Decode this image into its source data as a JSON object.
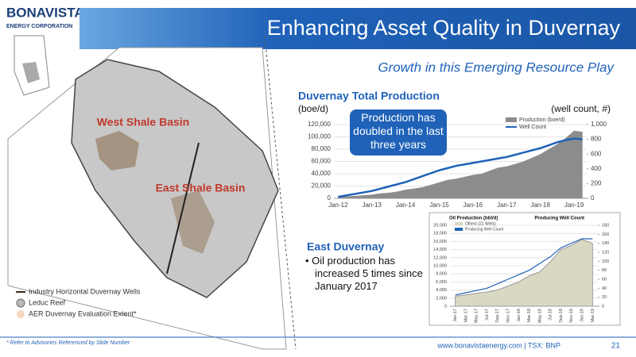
{
  "header": {
    "logo": "BONAVISTA",
    "logo_sub": "ENERGY CORPORATION",
    "title": "Enhancing Asset Quality in Duvernay"
  },
  "subtitle": "Growth in this Emerging Resource Play",
  "map": {
    "labels": [
      "West Shale Basin",
      "East Shale Basin"
    ],
    "legend": [
      "Industry Horizontal Duvernay Wells",
      "Leduc Reef",
      "AER Duvernay Evaluation Extent*"
    ]
  },
  "chart_data": [
    {
      "type": "area",
      "title": "Duvernay Total Production",
      "y_label": "(boe/d)",
      "y2_label": "(well count, #)",
      "annotation": "Production has doubled in the last three years",
      "categories": [
        "Jan-12",
        null,
        null,
        null,
        "Jan-13",
        null,
        null,
        null,
        "Jan-14",
        null,
        null,
        null,
        "Jan-15",
        null,
        null,
        null,
        "Jan-16",
        null,
        null,
        null,
        "Jan-17",
        null,
        null,
        null,
        "Jan-18",
        null,
        null,
        null,
        "Jan-19",
        null
      ],
      "series": [
        {
          "name": "Production (boe/d)",
          "color": "#8c8c8c",
          "values": [
            2000,
            3000,
            4000,
            5000,
            6000,
            8000,
            9000,
            11000,
            14000,
            16000,
            18000,
            22000,
            26000,
            30000,
            32000,
            35000,
            38000,
            40000,
            45000,
            50000,
            52000,
            56000,
            60000,
            66000,
            72000,
            80000,
            88000,
            98000,
            110000,
            108000
          ]
        },
        {
          "name": "Well Count",
          "color": "#1f62b8",
          "axis": "y2",
          "values": [
            20,
            40,
            60,
            80,
            100,
            130,
            160,
            190,
            220,
            260,
            300,
            340,
            380,
            410,
            440,
            460,
            480,
            500,
            520,
            540,
            560,
            590,
            620,
            650,
            680,
            720,
            760,
            790,
            810,
            800
          ]
        }
      ],
      "ylim": [
        0,
        120000
      ],
      "yticks": [
        0,
        {
          "value": 20000,
          "label": "20,000"
        },
        {
          "value": 40000,
          "label": "40,000"
        },
        {
          "value": 60000,
          "label": "60,000"
        },
        {
          "value": 80000,
          "label": "80,000"
        },
        {
          "value": 100000,
          "label": "100,000"
        },
        {
          "value": 120000,
          "label": "120,000"
        }
      ],
      "y2lim": [
        0,
        1000
      ],
      "y2ticks": [
        0,
        200,
        400,
        600,
        800,
        {
          "value": 1000,
          "label": "1,000"
        }
      ]
    },
    {
      "type": "area",
      "title": "Oil Production (bbl/d)",
      "y2_label": "Producing Well Count",
      "categories": [
        "Jan-17",
        "Mar-17",
        "May-17",
        "Jul-17",
        "Sep-17",
        "Nov-17",
        "Jan-18",
        "Mar-18",
        "May-18",
        "Jul-18",
        "Sep-18",
        "Nov-18",
        "Jan-19",
        "Mar-19"
      ],
      "series": [
        {
          "name": "Others (21 Wells)",
          "color": "#d9d9c3",
          "values": [
            2500,
            2800,
            3200,
            3500,
            4000,
            5000,
            6000,
            7500,
            8500,
            11000,
            14000,
            15000,
            16500,
            15500
          ]
        },
        {
          "name": "Producing Well Count",
          "color": "#1f62b8",
          "axis": "y2",
          "values": [
            25,
            30,
            35,
            40,
            50,
            60,
            70,
            80,
            95,
            110,
            130,
            140,
            150,
            150
          ]
        }
      ],
      "ylim": [
        0,
        20000
      ],
      "yticks": [
        0,
        {
          "value": 2000,
          "label": "2,000"
        },
        {
          "value": 4000,
          "label": "4,000"
        },
        {
          "value": 6000,
          "label": "6,000"
        },
        {
          "value": 8000,
          "label": "8,000"
        },
        {
          "value": 10000,
          "label": "10,000"
        },
        {
          "value": 12000,
          "label": "12,000"
        },
        {
          "value": 14000,
          "label": "14,000"
        },
        {
          "value": 16000,
          "label": "16,000"
        },
        {
          "value": 18000,
          "label": "18,000"
        },
        {
          "value": 20000,
          "label": "20,000"
        }
      ],
      "y2lim": [
        0,
        180
      ],
      "y2ticks": [
        0,
        20,
        40,
        60,
        80,
        100,
        120,
        140,
        160,
        180
      ]
    }
  ],
  "east_duvernay": {
    "heading": "East Duvernay",
    "bullet": "Oil production has increased 5 times since January 2017"
  },
  "footer": {
    "note": "* Refer to Advisories Referenced by Slide Number",
    "site": "www.bonavistaenergy.com | TSX: BNP",
    "page": "21"
  }
}
